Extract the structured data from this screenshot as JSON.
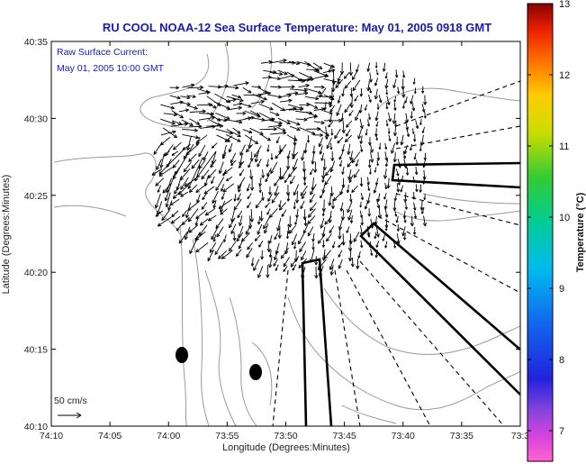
{
  "title": "RU COOL  NOAA-12  Sea Surface Temperature:  May 01, 2005 0918 GMT",
  "annotation": {
    "line1": "Raw Surface Current:",
    "line2": "May 01, 2005 10:00 GMT"
  },
  "scale_label": "50 cm/s",
  "axes": {
    "x_label": "Longitude (Degrees:Minutes)",
    "y_label": "Latitude (Degrees:Minutes)",
    "x_ticks": [
      "74:10",
      "74:05",
      "74:00",
      "73:55",
      "73:50",
      "73:45",
      "73:40",
      "73:35",
      "73:3"
    ],
    "y_ticks": [
      "40:35",
      "40:30",
      "40:25",
      "40:20",
      "40:15",
      "40:10"
    ]
  },
  "colorbar": {
    "title": "Temperature (°C)",
    "ticks": [
      "13",
      "12",
      "11",
      "10",
      "9",
      "8",
      "7"
    ]
  },
  "colors": {
    "title": "#1a1aa8",
    "land_contour": "#9a9a9a",
    "vectors": "#000000"
  }
}
